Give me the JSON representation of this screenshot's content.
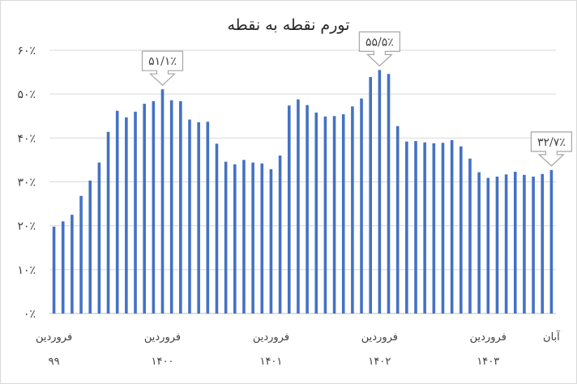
{
  "chart_data": {
    "type": "bar",
    "title": "تورم نقطه به نقطه",
    "ylim": [
      0,
      60
    ],
    "yticks": [
      {
        "value": 0,
        "label": "۰٪"
      },
      {
        "value": 10,
        "label": "۱۰٪"
      },
      {
        "value": 20,
        "label": "۲۰٪"
      },
      {
        "value": 30,
        "label": "۳۰٪"
      },
      {
        "value": 40,
        "label": "۴۰٪"
      },
      {
        "value": 50,
        "label": "۵۰٪"
      },
      {
        "value": 60,
        "label": "۶۰٪"
      }
    ],
    "values": [
      19.8,
      21.0,
      22.5,
      26.8,
      30.3,
      34.4,
      41.4,
      46.2,
      44.7,
      46.0,
      47.8,
      48.4,
      51.1,
      48.6,
      48.4,
      44.2,
      43.6,
      43.7,
      38.7,
      34.6,
      34.0,
      35.0,
      34.4,
      34.2,
      32.9,
      36.0,
      47.4,
      48.8,
      47.5,
      45.8,
      44.9,
      45.0,
      45.4,
      47.2,
      49.0,
      53.9,
      55.5,
      54.6,
      42.7,
      39.2,
      39.3,
      39.0,
      38.8,
      38.9,
      39.5,
      38.1,
      35.3,
      32.2,
      30.9,
      31.2,
      31.7,
      32.3,
      31.6,
      31.2,
      31.8,
      32.7
    ],
    "bar_color": "#4472c4",
    "x_labels": [
      {
        "index": 0,
        "month": "فروردین",
        "year": "۹۹"
      },
      {
        "index": 12,
        "month": "فروردین",
        "year": "۱۴۰۰"
      },
      {
        "index": 24,
        "month": "فروردین",
        "year": "۱۴۰۱"
      },
      {
        "index": 36,
        "month": "فروردین",
        "year": "۱۴۰۲"
      },
      {
        "index": 48,
        "month": "فروردین",
        "year": "۱۴۰۳"
      },
      {
        "index": 55,
        "month": "آبان",
        "year": ""
      }
    ],
    "callouts": [
      {
        "index": 12,
        "label": "۵۱/۱٪"
      },
      {
        "index": 36,
        "label": "۵۵/۵٪"
      },
      {
        "index": 55,
        "label": "۳۲/۷٪"
      }
    ],
    "grid": true,
    "legend": "none"
  }
}
